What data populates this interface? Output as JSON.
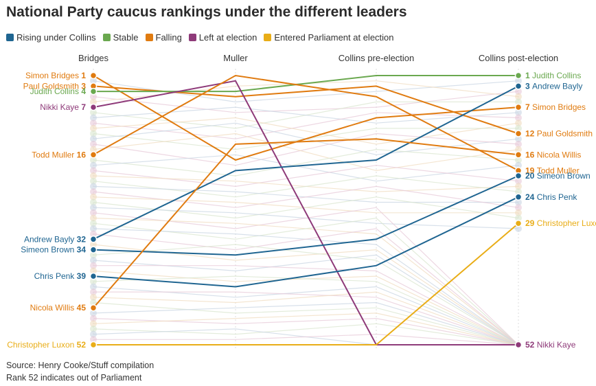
{
  "title": "National Party caucus rankings under the different leaders",
  "legend": [
    {
      "label": "Rising under Collins",
      "color": "#1f6591"
    },
    {
      "label": "Stable",
      "color": "#6aa84f"
    },
    {
      "label": "Falling",
      "color": "#e07b10"
    },
    {
      "label": "Left at election",
      "color": "#8e3a79"
    },
    {
      "label": "Entered Parliament at election",
      "color": "#e9ad17"
    }
  ],
  "columns": [
    "Bridges",
    "Muller",
    "Collins pre-election",
    "Collins post-election"
  ],
  "source": "Source: Henry Cooke/Stuff compilation",
  "note": "Rank 52 indicates out of Parliament",
  "chart_data": {
    "type": "line",
    "title": "National Party caucus rankings under the different leaders",
    "x": [
      "Bridges",
      "Muller",
      "Collins pre-election",
      "Collins post-election"
    ],
    "ylim": [
      1,
      52
    ],
    "y_inverted": true,
    "series": [
      {
        "name": "Simon Bridges",
        "group": "Falling",
        "values": [
          1,
          17,
          9,
          7
        ],
        "left_label": "Simon Bridges",
        "right_label": "Simon Bridges"
      },
      {
        "name": "Paul Goldsmith",
        "group": "Falling",
        "values": [
          3,
          5,
          3,
          12
        ],
        "left_label": "Paul Goldsmith",
        "right_label": "Paul Goldsmith"
      },
      {
        "name": "Judith Collins",
        "group": "Stable",
        "values": [
          4,
          4,
          1,
          1
        ],
        "left_label": "Judith Collins",
        "right_label": "Judith Collins"
      },
      {
        "name": "Nikki Kaye",
        "group": "Left at election",
        "values": [
          7,
          2,
          52,
          52
        ],
        "left_label": "Nikki Kaye",
        "right_label": "Nikki Kaye"
      },
      {
        "name": "Todd Muller",
        "group": "Falling",
        "values": [
          16,
          1,
          5,
          19
        ],
        "left_label": "Todd Muller",
        "right_label": "Todd Muller"
      },
      {
        "name": "Andrew Bayly",
        "group": "Rising under Collins",
        "values": [
          32,
          19,
          17,
          3
        ],
        "left_label": "Andrew Bayly",
        "right_label": "Andrew Bayly"
      },
      {
        "name": "Simeon Brown",
        "group": "Rising under Collins",
        "values": [
          34,
          35,
          32,
          20
        ],
        "left_label": "Simeon Brown",
        "right_label": "Simeon Brown"
      },
      {
        "name": "Chris Penk",
        "group": "Rising under Collins",
        "values": [
          39,
          41,
          37,
          24
        ],
        "left_label": "Chris Penk",
        "right_label": "Chris Penk"
      },
      {
        "name": "Nicola Willis",
        "group": "Falling",
        "values": [
          45,
          14,
          13,
          16
        ],
        "left_label": "Nicola Willis",
        "right_label": "Nicola Willis"
      },
      {
        "name": "Christopher Luxon",
        "group": "Entered Parliament at election",
        "values": [
          52,
          52,
          52,
          29
        ],
        "left_label": "Christopher Luxon",
        "right_label": "Christopher Luxon"
      }
    ],
    "background_series": [
      [
        2,
        6,
        4,
        2
      ],
      [
        5,
        8,
        7,
        4
      ],
      [
        6,
        3,
        2,
        5
      ],
      [
        8,
        11,
        6,
        6
      ],
      [
        9,
        7,
        10,
        8
      ],
      [
        10,
        13,
        8,
        9
      ],
      [
        11,
        9,
        14,
        10
      ],
      [
        12,
        15,
        11,
        11
      ],
      [
        13,
        10,
        16,
        13
      ],
      [
        14,
        18,
        12,
        14
      ],
      [
        15,
        12,
        19,
        15
      ],
      [
        17,
        20,
        15,
        17
      ],
      [
        18,
        16,
        21,
        18
      ],
      [
        19,
        22,
        18,
        21
      ],
      [
        20,
        21,
        23,
        22
      ],
      [
        21,
        24,
        20,
        23
      ],
      [
        22,
        23,
        25,
        25
      ],
      [
        23,
        26,
        22,
        26
      ],
      [
        24,
        25,
        27,
        27
      ],
      [
        25,
        28,
        24,
        28
      ],
      [
        26,
        27,
        29,
        30
      ],
      [
        27,
        30,
        26,
        52
      ],
      [
        28,
        29,
        31,
        52
      ],
      [
        29,
        32,
        28,
        52
      ],
      [
        30,
        31,
        33,
        52
      ],
      [
        31,
        34,
        30,
        52
      ],
      [
        33,
        36,
        34,
        52
      ],
      [
        35,
        33,
        36,
        52
      ],
      [
        36,
        38,
        35,
        52
      ],
      [
        37,
        37,
        38,
        52
      ],
      [
        38,
        40,
        39,
        52
      ],
      [
        40,
        39,
        40,
        52
      ],
      [
        41,
        43,
        41,
        52
      ],
      [
        42,
        42,
        43,
        52
      ],
      [
        43,
        44,
        42,
        52
      ],
      [
        44,
        46,
        45,
        52
      ],
      [
        46,
        45,
        44,
        52
      ],
      [
        47,
        48,
        47,
        52
      ],
      [
        48,
        47,
        46,
        52
      ],
      [
        49,
        50,
        48,
        52
      ],
      [
        50,
        49,
        52,
        52
      ],
      [
        51,
        51,
        50,
        52
      ]
    ]
  }
}
